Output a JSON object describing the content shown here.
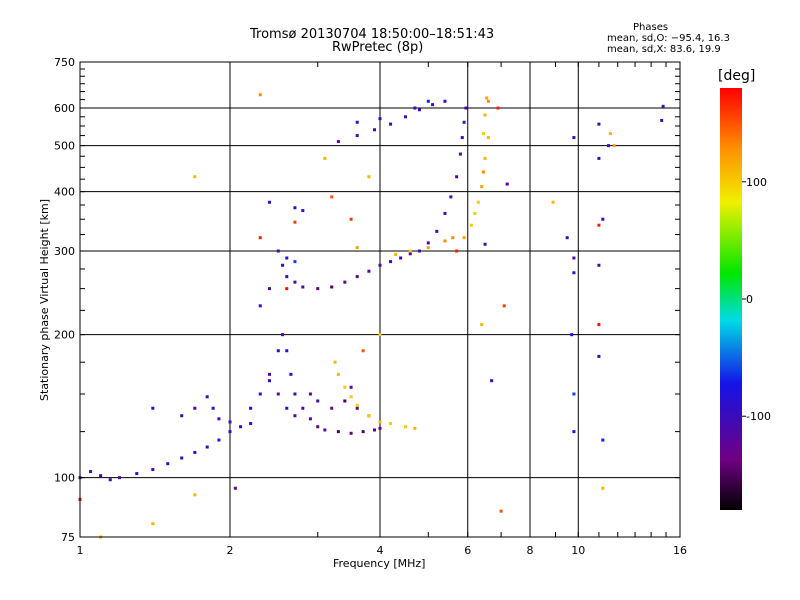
{
  "chart_data": {
    "type": "scatter",
    "title": "Tromsø 20130704 18:50:00–18:51:43",
    "subtitle": "RwPretec (8p)",
    "xlabel": "Frequency [MHz]",
    "ylabel": "Stationary phase Virtual Height [km]",
    "x_scale": "log",
    "y_scale": "log",
    "xlim": [
      1,
      16
    ],
    "ylim": [
      75,
      750
    ],
    "x_ticks": [
      1,
      2,
      4,
      6,
      8,
      10,
      16
    ],
    "x_tick_labels": [
      "1",
      "2",
      "4",
      "6",
      "8",
      "10",
      "16"
    ],
    "y_ticks": [
      75,
      100,
      200,
      300,
      400,
      500,
      600,
      750
    ],
    "y_tick_labels": [
      "75",
      "100",
      "200",
      "300",
      "400",
      "500",
      "600",
      "750"
    ],
    "grid": true,
    "stats": {
      "heading": "Phases",
      "o_line": "mean, sd,O: −95.4, 16.3",
      "x_line": "mean, sd,X:  83.6, 19.9"
    },
    "colorbar": {
      "label": "[deg]",
      "range": [
        -180,
        180
      ],
      "ticks": [
        100,
        0,
        -100
      ],
      "tick_labels": [
        "100",
        "0",
        "-100"
      ]
    },
    "series": [
      {
        "points": [
          [
            1.0,
            100,
            -100
          ],
          [
            1.05,
            103,
            -105
          ],
          [
            1.1,
            101,
            -100
          ],
          [
            1.15,
            99,
            -110
          ],
          [
            1.2,
            100,
            -105
          ],
          [
            1.3,
            102,
            -100
          ],
          [
            1.4,
            104,
            -95
          ],
          [
            1.5,
            107,
            -100
          ],
          [
            1.6,
            110,
            -90
          ],
          [
            1.7,
            113,
            -95
          ],
          [
            1.8,
            116,
            -100
          ],
          [
            1.9,
            120,
            -90
          ],
          [
            2.0,
            125,
            -95
          ],
          [
            2.1,
            128,
            -100
          ],
          [
            2.2,
            130,
            -90
          ],
          [
            1.6,
            135,
            -100
          ],
          [
            1.7,
            140,
            -105
          ],
          [
            1.8,
            148,
            -100
          ],
          [
            1.85,
            140,
            -95
          ],
          [
            1.9,
            133,
            -100
          ],
          [
            2.0,
            131,
            -95
          ],
          [
            2.2,
            140,
            -90
          ],
          [
            2.3,
            150,
            -100
          ],
          [
            2.4,
            165,
            -110
          ],
          [
            2.5,
            185,
            -100
          ],
          [
            2.55,
            200,
            -110
          ],
          [
            2.6,
            185,
            -90
          ],
          [
            2.65,
            165,
            -100
          ],
          [
            2.7,
            150,
            -110
          ],
          [
            2.8,
            140,
            -120
          ],
          [
            2.9,
            133,
            -110
          ],
          [
            3.0,
            128,
            -140
          ],
          [
            3.1,
            126,
            -120
          ],
          [
            3.3,
            125,
            -150
          ],
          [
            3.5,
            124,
            -140
          ],
          [
            3.7,
            125,
            -150
          ],
          [
            3.9,
            126,
            -140
          ],
          [
            4.0,
            127,
            -130
          ],
          [
            2.4,
            160,
            -100
          ],
          [
            2.5,
            150,
            -130
          ],
          [
            2.6,
            140,
            -90
          ],
          [
            2.7,
            135,
            -120
          ],
          [
            2.9,
            150,
            -130
          ],
          [
            3.0,
            145,
            -110
          ],
          [
            3.2,
            140,
            -130
          ],
          [
            3.4,
            145,
            -150
          ],
          [
            3.5,
            155,
            -120
          ],
          [
            3.6,
            140,
            -140
          ],
          [
            3.8,
            135,
            -130
          ],
          [
            2.5,
            300,
            -110
          ],
          [
            2.55,
            280,
            -90
          ],
          [
            2.6,
            265,
            -100
          ],
          [
            2.7,
            258,
            -110
          ],
          [
            2.8,
            252,
            -120
          ],
          [
            3.0,
            250,
            -140
          ],
          [
            3.2,
            252,
            -150
          ],
          [
            3.4,
            258,
            -140
          ],
          [
            3.6,
            265,
            -130
          ],
          [
            3.8,
            272,
            -120
          ],
          [
            4.0,
            280,
            -120
          ],
          [
            4.2,
            285,
            -110
          ],
          [
            4.4,
            290,
            -110
          ],
          [
            4.6,
            296,
            -110
          ],
          [
            4.8,
            300,
            -110
          ],
          [
            5.0,
            312,
            -110
          ],
          [
            5.2,
            330,
            -110
          ],
          [
            5.4,
            360,
            -110
          ],
          [
            5.55,
            390,
            -110
          ],
          [
            5.7,
            430,
            -110
          ],
          [
            5.8,
            480,
            -110
          ],
          [
            5.85,
            520,
            -110
          ],
          [
            5.9,
            560,
            -110
          ],
          [
            5.95,
            600,
            -110
          ],
          [
            3.3,
            510,
            -120
          ],
          [
            3.6,
            525,
            -110
          ],
          [
            3.9,
            540,
            -110
          ],
          [
            4.2,
            555,
            -100
          ],
          [
            4.5,
            575,
            -100
          ],
          [
            4.8,
            595,
            -100
          ],
          [
            5.1,
            610,
            -100
          ],
          [
            5.4,
            620,
            -100
          ],
          [
            2.7,
            370,
            -80
          ],
          [
            2.8,
            365,
            -80
          ],
          [
            2.6,
            290,
            -70
          ],
          [
            2.7,
            285,
            -60
          ],
          [
            4.3,
            295,
            110
          ],
          [
            4.6,
            300,
            100
          ],
          [
            5.0,
            305,
            120
          ],
          [
            5.4,
            315,
            130
          ],
          [
            5.6,
            320,
            130
          ],
          [
            5.7,
            300,
            170
          ],
          [
            5.9,
            320,
            120
          ],
          [
            6.1,
            340,
            100
          ],
          [
            6.2,
            360,
            100
          ],
          [
            6.3,
            380,
            100
          ],
          [
            6.4,
            410,
            120
          ],
          [
            6.45,
            440,
            130
          ],
          [
            6.5,
            470,
            110
          ],
          [
            6.45,
            530,
            100
          ],
          [
            6.5,
            580,
            110
          ],
          [
            6.55,
            630,
            120
          ],
          [
            3.25,
            175,
            110
          ],
          [
            3.3,
            165,
            110
          ],
          [
            3.4,
            155,
            100
          ],
          [
            3.5,
            148,
            100
          ],
          [
            3.6,
            142,
            100
          ],
          [
            3.8,
            135,
            100
          ],
          [
            4.0,
            131,
            110
          ],
          [
            4.2,
            130,
            100
          ],
          [
            4.5,
            128,
            100
          ],
          [
            4.7,
            127,
            110
          ],
          [
            2.3,
            230,
            -100
          ],
          [
            2.4,
            250,
            -110
          ],
          [
            3.6,
            560,
            -80
          ],
          [
            4.0,
            570,
            -100
          ],
          [
            4.7,
            600,
            -90
          ],
          [
            5.0,
            620,
            -70
          ],
          [
            9.8,
            270,
            -100
          ],
          [
            9.8,
            290,
            -110
          ],
          [
            9.7,
            200,
            -80
          ],
          [
            9.8,
            150,
            -60
          ],
          [
            9.8,
            125,
            -80
          ],
          [
            11.0,
            280,
            -110
          ],
          [
            11.2,
            350,
            -100
          ],
          [
            11.5,
            500,
            -100
          ],
          [
            11.0,
            555,
            -90
          ],
          [
            11.0,
            470,
            -100
          ],
          [
            11.0,
            180,
            -90
          ],
          [
            11.0,
            210,
            175
          ],
          [
            11.0,
            340,
            170
          ],
          [
            11.2,
            120,
            -70
          ],
          [
            14.8,
            605,
            -110
          ],
          [
            14.7,
            565,
            -110
          ],
          [
            9.5,
            320,
            -100
          ],
          [
            9.8,
            520,
            -100
          ],
          [
            7.2,
            415,
            -110
          ],
          [
            6.5,
            310,
            -100
          ],
          [
            6.7,
            160,
            -110
          ],
          [
            2.3,
            320,
            170
          ],
          [
            2.6,
            250,
            175
          ],
          [
            2.7,
            345,
            160
          ],
          [
            3.1,
            470,
            110
          ],
          [
            1.7,
            430,
            110
          ],
          [
            2.3,
            640,
            130
          ],
          [
            1.7,
            92,
            110
          ],
          [
            1.4,
            80,
            110
          ],
          [
            1.1,
            75,
            110
          ],
          [
            1.0,
            90,
            170
          ],
          [
            2.4,
            380,
            -100
          ],
          [
            3.2,
            390,
            150
          ],
          [
            3.5,
            350,
            160
          ],
          [
            3.8,
            430,
            110
          ],
          [
            3.6,
            305,
            120
          ],
          [
            7.1,
            230,
            160
          ],
          [
            7.0,
            85,
            150
          ],
          [
            6.9,
            600,
            170
          ],
          [
            6.6,
            620,
            130
          ],
          [
            2.05,
            95,
            -120
          ],
          [
            8.9,
            380,
            110
          ],
          [
            6.6,
            520,
            110
          ],
          [
            6.4,
            210,
            110
          ],
          [
            4.0,
            200,
            100
          ],
          [
            3.7,
            185,
            150
          ],
          [
            11.8,
            500,
            120
          ],
          [
            11.6,
            530,
            110
          ],
          [
            11.2,
            95,
            110
          ],
          [
            1.4,
            140,
            -80
          ]
        ]
      }
    ]
  }
}
